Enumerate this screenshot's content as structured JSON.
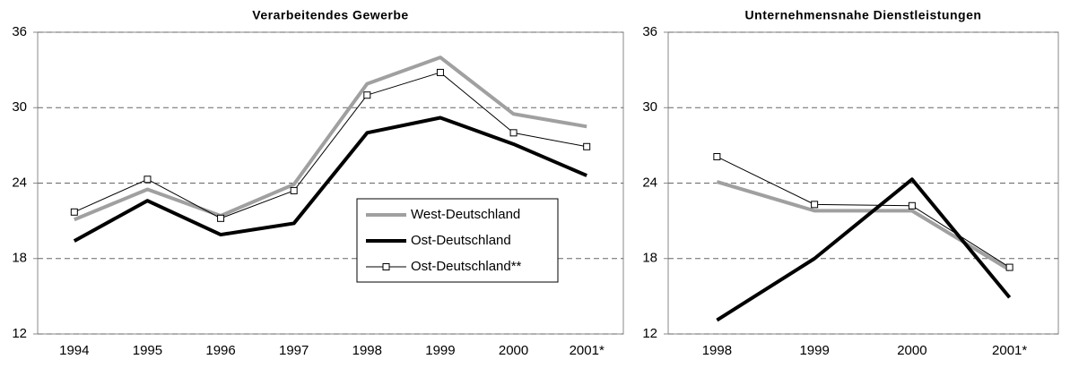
{
  "chart_data": [
    {
      "type": "line",
      "title": "Verarbeitendes Gewerbe",
      "categories": [
        "1994",
        "1995",
        "1996",
        "1997",
        "1998",
        "1999",
        "2000",
        "2001*"
      ],
      "series": [
        {
          "name": "West-Deutschland",
          "color": "#a0a0a0",
          "width": 4,
          "values": [
            21.1,
            23.5,
            21.4,
            23.9,
            31.9,
            34.0,
            29.5,
            28.5
          ]
        },
        {
          "name": "Ost-Deutschland",
          "color": "#000000",
          "width": 4,
          "values": [
            19.4,
            22.6,
            19.9,
            20.8,
            28.0,
            29.2,
            27.1,
            24.6
          ]
        },
        {
          "name": "Ost-Deutschland**",
          "color": "#000000",
          "width": 1,
          "marker": "square",
          "values": [
            21.7,
            24.3,
            21.2,
            23.4,
            31.0,
            32.8,
            28.0,
            26.9
          ]
        }
      ],
      "ylim": [
        12,
        36
      ],
      "yticks": [
        12,
        18,
        24,
        30,
        36
      ],
      "grid": true,
      "legend": "lower right"
    },
    {
      "type": "line",
      "title": "Unternehmensnahe Dienstleistungen",
      "categories": [
        "1998",
        "1999",
        "2000",
        "2001*"
      ],
      "series": [
        {
          "name": "West-Deutschland",
          "color": "#a0a0a0",
          "width": 4,
          "values": [
            24.1,
            21.8,
            21.8,
            17.1
          ]
        },
        {
          "name": "Ost-Deutschland",
          "color": "#000000",
          "width": 4,
          "values": [
            13.1,
            18.0,
            24.3,
            14.9
          ]
        },
        {
          "name": "Ost-Deutschland**",
          "color": "#000000",
          "width": 1,
          "marker": "square",
          "values": [
            26.1,
            22.3,
            22.2,
            17.3
          ]
        }
      ],
      "ylim": [
        12,
        36
      ],
      "yticks": [
        12,
        18,
        24,
        30,
        36
      ],
      "grid": true,
      "legend": false
    }
  ]
}
